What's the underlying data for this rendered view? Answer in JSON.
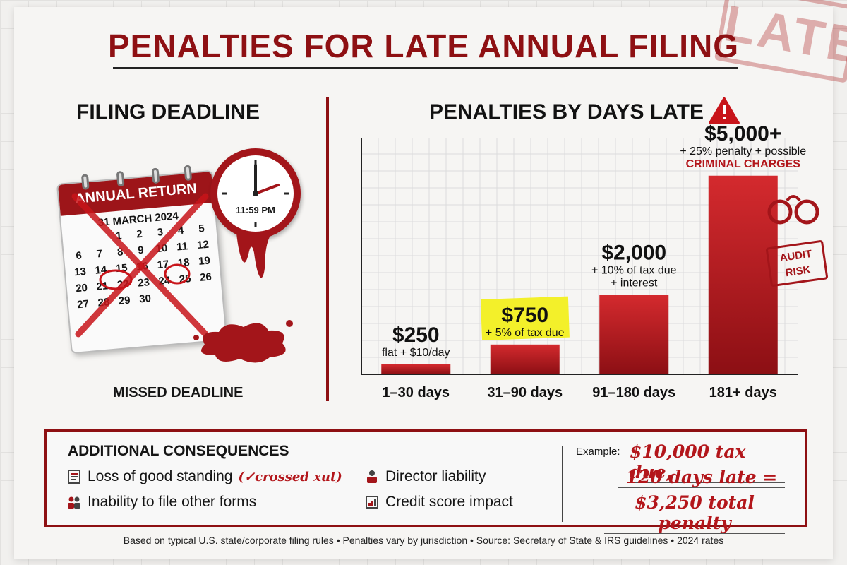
{
  "title": "PENALTIES FOR LATE ANNUAL FILING",
  "stamp": "LATE",
  "left": {
    "heading": "FILING DEADLINE",
    "calendar_header": "ANNUAL RETURN",
    "calendar_date": "31 MARCH 2024",
    "calendar_days": [
      "1",
      "2",
      "3",
      "4",
      "5",
      "6",
      "7",
      "8",
      "9",
      "10",
      "11",
      "12",
      "13",
      "14",
      "15",
      "16",
      "17",
      "18",
      "19",
      "20",
      "21",
      "22",
      "23",
      "24",
      "25",
      "26",
      "27",
      "28",
      "29",
      "30"
    ],
    "clock_time": "11:59 PM",
    "caption": "MISSED DEADLINE"
  },
  "right": {
    "heading": "PENALTIES BY DAYS LATE"
  },
  "chart_data": {
    "type": "bar",
    "title": "PENALTIES BY DAYS LATE",
    "categories": [
      "1–30 days",
      "31–90 days",
      "91–180 days",
      "181+ days"
    ],
    "values": [
      250,
      750,
      2000,
      5000
    ],
    "value_labels": [
      "$250",
      "$750",
      "$2,000",
      "$5,000+"
    ],
    "descriptions": [
      [
        "flat + $10/day"
      ],
      [
        "+ 5% of tax due"
      ],
      [
        "+ 10% of tax due",
        "+ interest"
      ],
      [
        "+ 25% penalty + possible",
        "CRIMINAL CHARGES"
      ]
    ],
    "grid": true,
    "colors": {
      "bar_top": "#d42a2e",
      "bar_bottom": "#8c0f14",
      "highlight": "#f3f02a"
    }
  },
  "badges": {
    "audit": [
      "AUDIT",
      "RISK"
    ]
  },
  "consequences": {
    "title": "ADDITIONAL CONSEQUENCES",
    "items": [
      {
        "label": "Loss of good standing",
        "note": "(✓crossed xut)",
        "icon": "document-icon"
      },
      {
        "label": "Inability to file other forms",
        "icon": "people-icon"
      },
      {
        "label": "Director liability",
        "icon": "director-icon"
      },
      {
        "label": "Credit score impact",
        "icon": "credit-icon"
      }
    ],
    "example": {
      "label": "Example:",
      "lines": [
        "$10,000 tax due,",
        "120 days late =",
        "$3,250 total penalty"
      ]
    }
  },
  "footer": "Based on typical U.S. state/corporate filing rules • Penalties vary by jurisdiction • Source: Secretary of State & IRS guidelines • 2024 rates",
  "colors": {
    "brand": "#8e1013",
    "accent": "#b3161b"
  }
}
